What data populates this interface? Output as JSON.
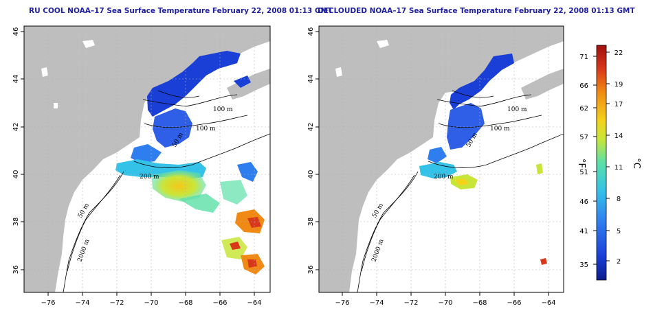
{
  "panels": [
    {
      "title": "RU COOL NOAA–17 Sea Surface Temperature February 22, 2008 01:13 GMT",
      "contour_labels": [
        "100 m",
        "100 m",
        "50 m",
        "200 m",
        "50 m",
        "2000 m"
      ]
    },
    {
      "title": "DECLOUDED NOAA–17 Sea Surface Temperature February 22, 2008 01:13 GMT",
      "contour_labels": [
        "100 m",
        "100 m",
        "50 m",
        "200 m",
        "50 m",
        "2000 m"
      ]
    }
  ],
  "x_ticks": [
    "−76",
    "−74",
    "−72",
    "−70",
    "−68",
    "−66",
    "−64"
  ],
  "y_ticks": [
    "36",
    "38",
    "40",
    "42",
    "44",
    "46"
  ],
  "colorbar": {
    "fahrenheit_ticks": [
      "35",
      "41",
      "46",
      "51",
      "57",
      "62",
      "66",
      "71"
    ],
    "celsius_ticks": [
      "2",
      "5",
      "8",
      "11",
      "14",
      "17",
      "19",
      "22"
    ],
    "fahrenheit_label": "°F",
    "celsius_label": "°C",
    "colors": [
      "#0a1a8c",
      "#1a3fd6",
      "#2f7ef0",
      "#35c2e8",
      "#5be0a8",
      "#c8e63a",
      "#f4d21a",
      "#f08a14",
      "#d8381a",
      "#a01010"
    ]
  },
  "colors": {
    "land": "#bebebe",
    "ocean": "#ffffff",
    "title": "#2020a0",
    "grid": "#b0b0b0"
  }
}
